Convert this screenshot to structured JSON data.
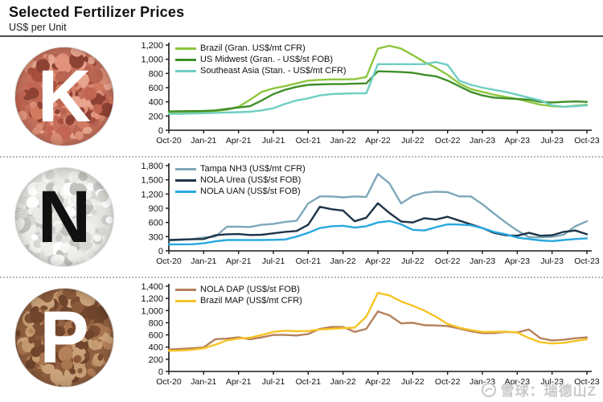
{
  "header": {
    "title": "Selected Fertilizer Prices",
    "subtitle": "US$ per Unit"
  },
  "watermark": {
    "text": "雪球：瑞德山Z"
  },
  "chart_data": {
    "type": "line",
    "grid": false,
    "legend_position": "top-left-inside",
    "x_months": [
      "Oct-20",
      "Nov-20",
      "Dec-20",
      "Jan-21",
      "Feb-21",
      "Mar-21",
      "Apr-21",
      "May-21",
      "Jun-21",
      "Jul-21",
      "Aug-21",
      "Sep-21",
      "Oct-21",
      "Nov-21",
      "Dec-21",
      "Jan-22",
      "Feb-22",
      "Mar-22",
      "Apr-22",
      "May-22",
      "Jun-22",
      "Jul-22",
      "Aug-22",
      "Sep-22",
      "Oct-22",
      "Nov-22",
      "Dec-22",
      "Jan-23",
      "Feb-23",
      "Mar-23",
      "Apr-23",
      "May-23",
      "Jun-23",
      "Jul-23",
      "Aug-23",
      "Sep-23",
      "Oct-23"
    ],
    "x_tick_labels": [
      "Oct-20",
      "Jan-21",
      "Apr-21",
      "Jul-21",
      "Oct-21",
      "Jan-22",
      "Apr-22",
      "Jul-22",
      "Oct-22",
      "Jan-23",
      "Apr-23",
      "Jul-23",
      "Oct-23"
    ],
    "panels": [
      {
        "id": "potash",
        "letter": "K",
        "letter_color": "#ffffff",
        "circle_base": "#c4705c",
        "granule_colors": [
          "#d98d75",
          "#c36553",
          "#e8a48e",
          "#a94f3f",
          "#b86552",
          "#e2937c",
          "#8d4234",
          "#d27a60"
        ],
        "ylim": [
          0,
          1200
        ],
        "ystep": 200,
        "series": [
          {
            "name": "Brazil (Gran. US$/mt CFR)",
            "color": "#8dc63f",
            "values": [
              250,
              255,
              255,
              260,
              270,
              290,
              330,
              430,
              540,
              590,
              620,
              660,
              700,
              710,
              715,
              715,
              720,
              750,
              1150,
              1190,
              1150,
              1060,
              960,
              880,
              780,
              660,
              580,
              540,
              500,
              470,
              440,
              400,
              360,
              340,
              330,
              345,
              360
            ]
          },
          {
            "name": "US Midwest (Gran. - US$/st FOB)",
            "color": "#3f8f29",
            "values": [
              265,
              268,
              270,
              272,
              280,
              300,
              320,
              340,
              420,
              510,
              570,
              610,
              640,
              645,
              650,
              650,
              655,
              660,
              830,
              825,
              820,
              810,
              780,
              760,
              700,
              620,
              540,
              490,
              460,
              450,
              440,
              430,
              400,
              390,
              400,
              405,
              400
            ]
          },
          {
            "name": "Southeast Asia (Stan. - US$/mt CFR)",
            "color": "#6fcfc3",
            "values": [
              230,
              232,
              235,
              240,
              245,
              250,
              255,
              260,
              280,
              310,
              370,
              420,
              450,
              490,
              510,
              515,
              520,
              520,
              930,
              930,
              930,
              930,
              930,
              960,
              920,
              700,
              640,
              600,
              570,
              540,
              500,
              460,
              420,
              350,
              330,
              340,
              350
            ]
          }
        ]
      },
      {
        "id": "nitrogen",
        "letter": "N",
        "letter_color": "#111111",
        "circle_base": "#e3e3df",
        "granule_colors": [
          "#f6f6f4",
          "#e9e9e5",
          "#d8d8d3",
          "#cccccc",
          "#ffffff",
          "#c2c2bd",
          "#efefec"
        ],
        "ylim": [
          0,
          1800
        ],
        "ystep": 300,
        "series": [
          {
            "name": "Tampa NH3 (US$/mt CFR)",
            "color": "#7fa8ba",
            "values": [
              220,
              230,
              250,
              280,
              300,
              510,
              510,
              505,
              550,
              570,
              610,
              635,
              1000,
              1150,
              1150,
              1130,
              1150,
              1140,
              1625,
              1425,
              1000,
              1160,
              1230,
              1250,
              1240,
              1150,
              1150,
              985,
              790,
              600,
              430,
              290,
              285,
              295,
              340,
              520,
              625
            ]
          },
          {
            "name": "NOLA Urea (US$/st FOB)",
            "color": "#1f3448",
            "values": [
              230,
              240,
              245,
              250,
              330,
              350,
              355,
              335,
              340,
              370,
              400,
              420,
              550,
              930,
              880,
              850,
              625,
              700,
              1005,
              800,
              620,
              600,
              690,
              660,
              720,
              640,
              560,
              480,
              380,
              330,
              320,
              380,
              320,
              330,
              400,
              430,
              350
            ]
          },
          {
            "name": "NOLA UAN (US$/st FOB)",
            "color": "#29a8e0",
            "values": [
              135,
              138,
              140,
              160,
              200,
              230,
              230,
              228,
              230,
              232,
              240,
              300,
              380,
              480,
              520,
              530,
              490,
              520,
              600,
              630,
              560,
              445,
              430,
              500,
              560,
              555,
              540,
              480,
              400,
              350,
              280,
              250,
              220,
              205,
              230,
              250,
              265
            ]
          }
        ]
      },
      {
        "id": "phosphate",
        "letter": "P",
        "letter_color": "#ffffff",
        "circle_base": "#8f5f3f",
        "granule_colors": [
          "#b5815a",
          "#8a5a3a",
          "#c49a70",
          "#6f452c",
          "#a9764f",
          "#7d4e33",
          "#caa27a"
        ],
        "ylim": [
          0,
          1400
        ],
        "ystep": 200,
        "series": [
          {
            "name": "NOLA DAP (US$/st FOB)",
            "color": "#b5805a",
            "values": [
              360,
              370,
              380,
              395,
              530,
              540,
              560,
              530,
              560,
              600,
              600,
              590,
              615,
              700,
              730,
              730,
              650,
              700,
              985,
              920,
              790,
              800,
              760,
              755,
              745,
              705,
              660,
              630,
              630,
              650,
              640,
              690,
              545,
              510,
              520,
              545,
              560
            ]
          },
          {
            "name": "Brazil MAP (US$/mt CFR)",
            "color": "#f7c325",
            "values": [
              340,
              345,
              355,
              380,
              440,
              510,
              540,
              555,
              600,
              650,
              670,
              660,
              665,
              690,
              700,
              710,
              720,
              900,
              1290,
              1250,
              1150,
              1080,
              1000,
              900,
              780,
              720,
              680,
              650,
              650,
              655,
              640,
              550,
              480,
              460,
              470,
              500,
              530
            ]
          }
        ]
      }
    ]
  }
}
